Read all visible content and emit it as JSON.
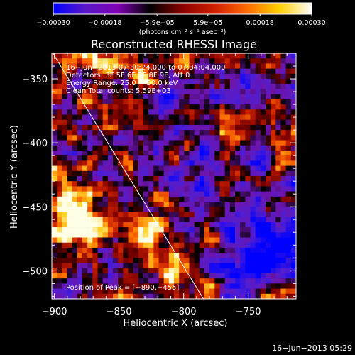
{
  "chart_data": {
    "type": "heatmap",
    "title": "Reconstructed RHESSI Image",
    "xlabel": "Heliocentric X (arcsec)",
    "ylabel": "Heliocentric Y (arcsec)",
    "xlim": [
      -902,
      -713
    ],
    "ylim": [
      -522,
      -330
    ],
    "xticks": [
      -900,
      -850,
      -800,
      -750
    ],
    "xtick_labels": [
      "−900",
      "−850",
      "−800",
      "−750"
    ],
    "yticks": [
      -350,
      -400,
      -450,
      -500
    ],
    "ytick_labels": [
      "−350",
      "−400",
      "−450",
      "−500"
    ],
    "colorbar": {
      "range": [
        -0.0003,
        0.0003
      ],
      "ticks": [
        -0.0003,
        -0.00018,
        -5.9e-05,
        5.9e-05,
        0.00018,
        0.0003
      ],
      "tick_labels": [
        "−0.00030",
        "−0.00018",
        "−5.9e−05",
        "5.9e−05",
        "0.00018",
        "0.00030"
      ],
      "units": "(photons cm⁻² s⁻¹ asec⁻²)",
      "colors": [
        "#0000ff",
        "#5a18c8",
        "#8000b4",
        "#000000",
        "#8b0000",
        "#d02000",
        "#ff6a00",
        "#ffd000",
        "#ffffff"
      ]
    },
    "annotations": [
      "16−Jun−2013 07:30:24.000 to 07:34:04.000",
      "Detectors: 3F 5F 6F 7F 8F 9F, Att 0",
      "Energy Range: 25.0 − 50.0 keV",
      "Clean    Total counts: 5.59E+03"
    ],
    "peak_label": "Position of Peak = [−890,−455]",
    "peak_position": [
      -890,
      -455
    ],
    "limb_line": {
      "x": [
        -903,
        -781
      ],
      "y": [
        -327,
        -528
      ]
    },
    "grid": false,
    "legend": "none"
  },
  "footer": {
    "timestamp": "16−Jun−2013 05:29"
  }
}
